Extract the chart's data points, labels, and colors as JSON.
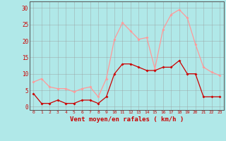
{
  "hours": [
    0,
    1,
    2,
    3,
    4,
    5,
    6,
    7,
    8,
    9,
    10,
    11,
    12,
    13,
    14,
    15,
    16,
    17,
    18,
    19,
    20,
    21,
    22,
    23
  ],
  "wind_mean": [
    4,
    1,
    1,
    2,
    1,
    1,
    2,
    2,
    1,
    3,
    10,
    13,
    13,
    12,
    11,
    11,
    12,
    12,
    14,
    10,
    10,
    3,
    3,
    3
  ],
  "wind_gust": [
    7.5,
    8.5,
    6,
    5.5,
    5.5,
    4.5,
    5.5,
    6,
    3,
    8.5,
    20.5,
    25.5,
    23,
    20.5,
    21,
    11.5,
    23.5,
    28,
    29.5,
    27,
    19,
    12,
    10.5,
    9.5
  ],
  "mean_color": "#cc0000",
  "gust_color": "#ff9999",
  "bg_color": "#b0e8e8",
  "grid_color": "#999999",
  "xlabel": "Vent moyen/en rafales ( km/h )",
  "xlabel_color": "#cc0000",
  "tick_color": "#cc0000",
  "ylim": [
    -1,
    32
  ],
  "yticks": [
    0,
    5,
    10,
    15,
    20,
    25,
    30
  ],
  "marker": "D",
  "markersize": 2.0,
  "linewidth": 0.9
}
